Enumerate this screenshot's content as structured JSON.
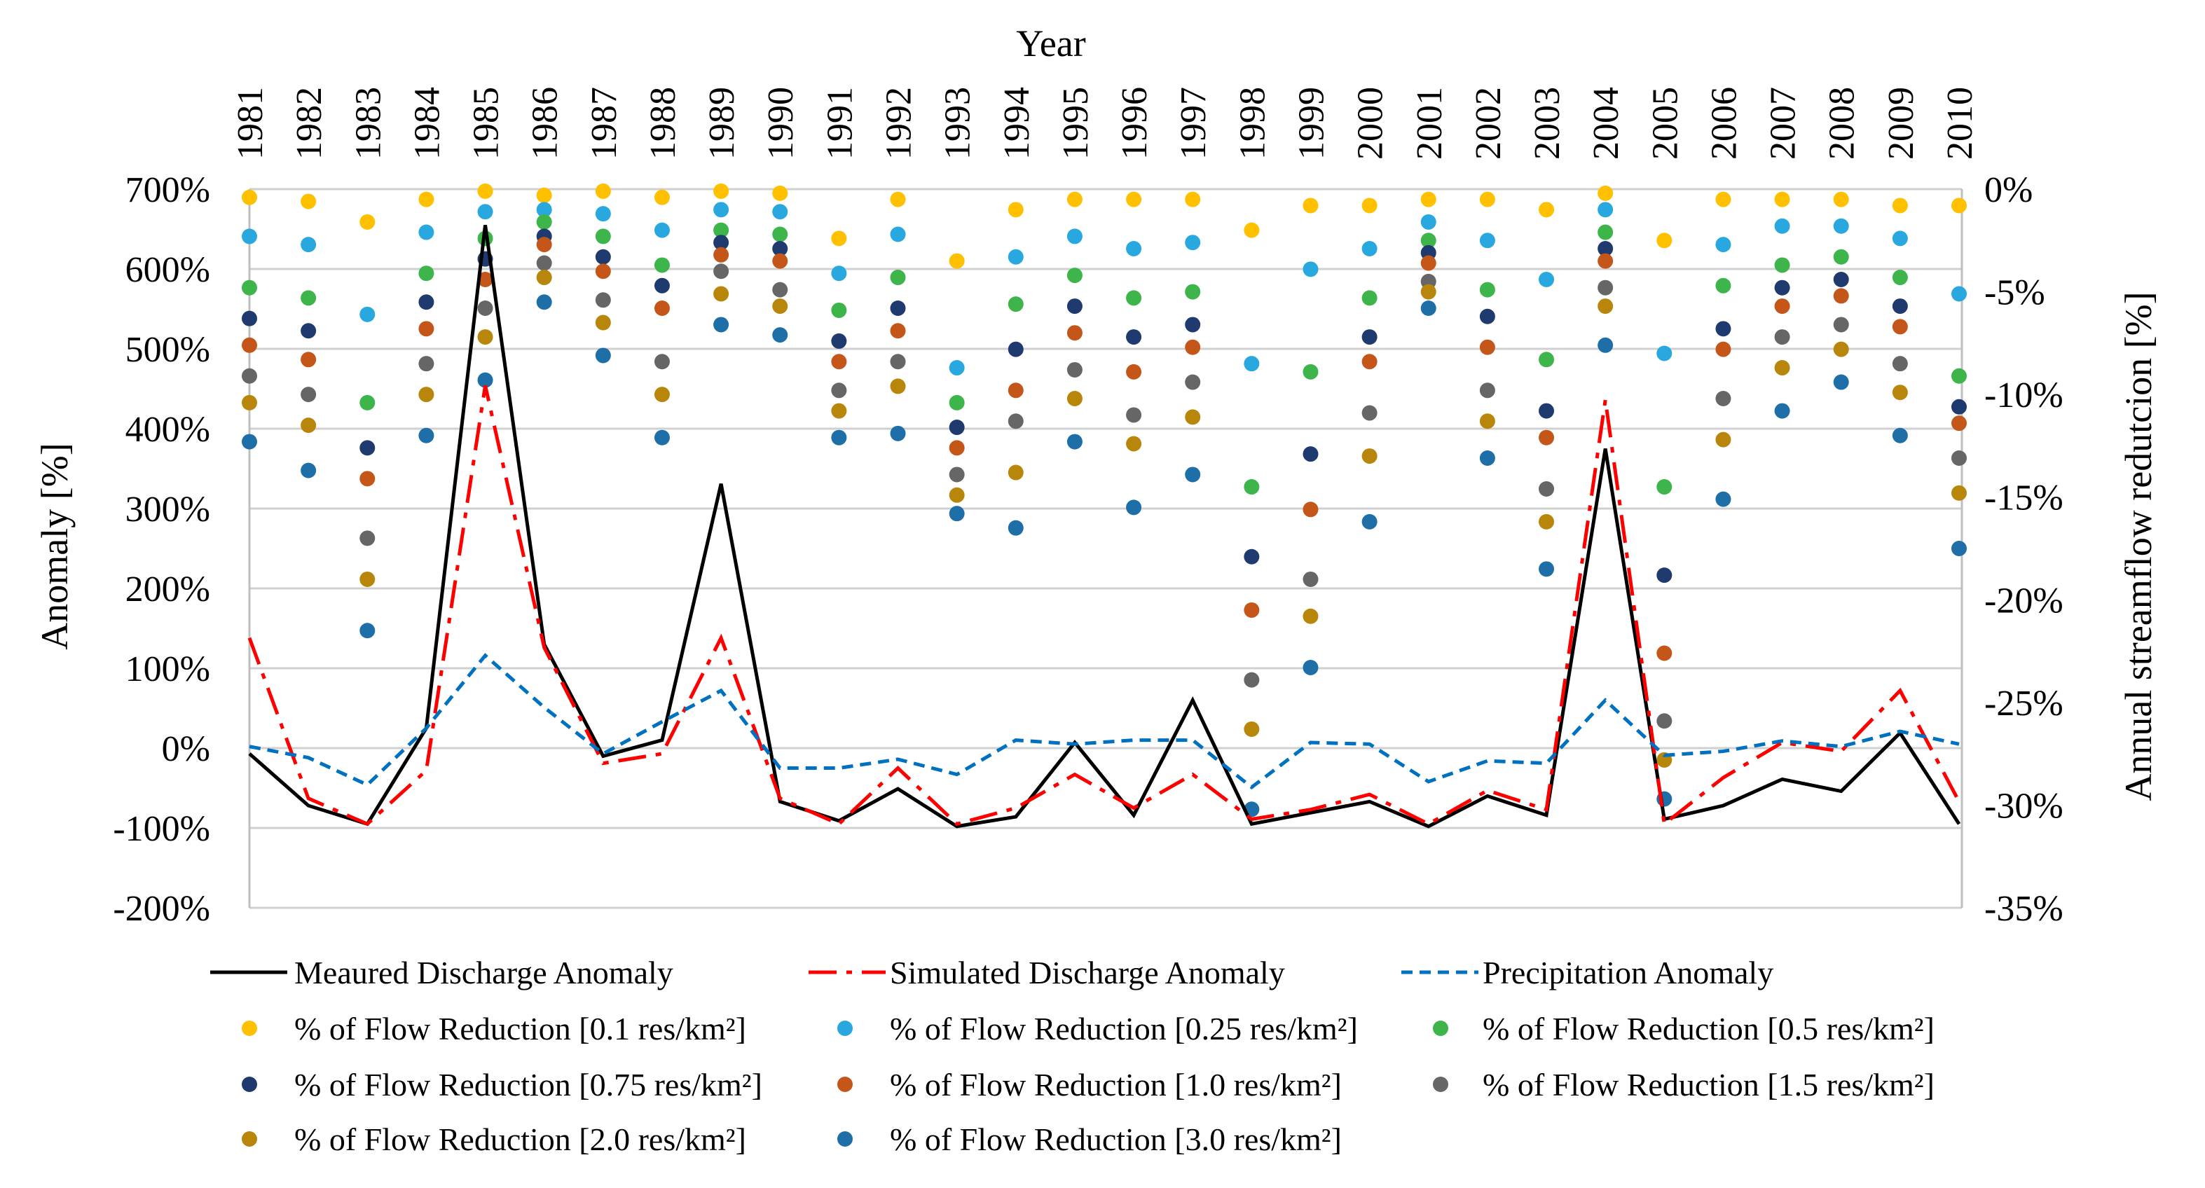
{
  "chart_data": {
    "type": "line",
    "title": "",
    "xlabel": "Year",
    "ylabel": "Anomaly [%]",
    "ylabel_right": "Annual streamflow redutcion [%]",
    "x": [
      1981,
      1982,
      1983,
      1984,
      1985,
      1986,
      1987,
      1988,
      1989,
      1990,
      1991,
      1992,
      1993,
      1994,
      1995,
      1996,
      1997,
      1998,
      1999,
      2000,
      2001,
      2002,
      2003,
      2004,
      2005,
      2006,
      2007,
      2008,
      2009,
      2010
    ],
    "ylim": [
      -200,
      700
    ],
    "ylim_right": [
      -35,
      0
    ],
    "yticks": [
      "700%",
      "600%",
      "500%",
      "400%",
      "300%",
      "200%",
      "100%",
      "0%",
      "-100%",
      "-200%"
    ],
    "yticks_right": [
      "0%",
      "-5%",
      "-10%",
      "-15%",
      "-20%",
      "-25%",
      "-30%",
      "-35%"
    ],
    "grid": true,
    "legend_position": "bottom",
    "line_series": [
      {
        "name": "Meaured Discharge Anomaly",
        "color": "#000000",
        "dash": "solid",
        "values": [
          -7,
          -72,
          -95,
          25,
          655,
          130,
          -10,
          10,
          331,
          -67,
          -91,
          -51,
          -98,
          -86,
          7,
          -84,
          60,
          -95,
          -81,
          -67,
          -98,
          -60,
          -84,
          375,
          -89,
          -72,
          -39,
          -54,
          19,
          -95
        ]
      },
      {
        "name": "Simulated Discharge Anomaly",
        "color": "#FF0000",
        "dash": "dashdot",
        "values": [
          138,
          -63,
          -95,
          -28,
          454,
          126,
          -19,
          -7,
          138,
          -63,
          -95,
          -25,
          -95,
          -75,
          -33,
          -75,
          -33,
          -89,
          -77,
          -58,
          -95,
          -53,
          -77,
          436,
          -95,
          -37,
          7,
          -4,
          72,
          -67
        ]
      },
      {
        "name": "Precipitation Anomaly",
        "color": "#0070C0",
        "dash": "dash",
        "values": [
          2,
          -12,
          -46,
          25,
          116,
          51,
          -7,
          33,
          72,
          -25,
          -25,
          -14,
          -33,
          10,
          5,
          10,
          10,
          -49,
          7,
          5,
          -42,
          -16,
          -19,
          60,
          -9,
          -4,
          9,
          2,
          21,
          5
        ]
      }
    ],
    "dot_series": [
      {
        "name": "% of Flow Reduction [0.1 res/km²]",
        "color": "#FFC000",
        "values": [
          -0.4,
          -0.6,
          -1.6,
          -0.5,
          -0.1,
          -0.3,
          -0.1,
          -0.4,
          -0.1,
          -0.2,
          -2.4,
          -0.5,
          -3.5,
          -1.0,
          -0.5,
          -0.5,
          -0.5,
          -2.0,
          -0.8,
          -0.8,
          -0.5,
          -0.5,
          -1.0,
          -0.2,
          -2.5,
          -0.5,
          -0.5,
          -0.5,
          -0.8,
          -0.8
        ]
      },
      {
        "name": "% of Flow Reduction [0.25 res/km²]",
        "color": "#29A8E0",
        "values": [
          -2.3,
          -2.7,
          -6.1,
          -2.1,
          -1.1,
          -1.0,
          -1.2,
          -2.0,
          -1.0,
          -1.1,
          -4.1,
          -2.2,
          -8.7,
          -3.3,
          -2.3,
          -2.9,
          -2.6,
          -8.5,
          -3.9,
          -2.9,
          -1.6,
          -2.5,
          -4.4,
          -1.0,
          -8.0,
          -2.7,
          -1.8,
          -1.8,
          -2.4,
          -5.1
        ]
      },
      {
        "name": "% of Flow Reduction [0.5 res/km²]",
        "color": "#3DB54A",
        "values": [
          -4.8,
          -5.3,
          -10.4,
          -4.1,
          -2.4,
          -1.6,
          -2.3,
          -3.7,
          -2.0,
          -2.2,
          -5.9,
          -4.3,
          -10.4,
          -5.6,
          -4.2,
          -5.3,
          -5.0,
          -14.5,
          -8.9,
          -5.3,
          -2.5,
          -4.9,
          -8.3,
          -2.1,
          -14.5,
          -4.7,
          -3.7,
          -3.3,
          -4.3,
          -9.1
        ]
      },
      {
        "name": "% of Flow Reduction [0.75 res/km²]",
        "color": "#1F3A6E",
        "values": [
          -6.3,
          -6.9,
          -12.6,
          -5.5,
          -3.4,
          -2.3,
          -3.3,
          -4.7,
          -2.6,
          -2.9,
          -7.4,
          -5.8,
          -11.6,
          -7.8,
          -5.7,
          -7.2,
          -6.6,
          -17.9,
          -12.9,
          -7.2,
          -3.1,
          -6.2,
          -10.8,
          -2.9,
          -18.8,
          -6.8,
          -4.8,
          -4.4,
          -5.7,
          -10.6
        ]
      },
      {
        "name": "% of Flow Reduction [1.0 res/km²]",
        "color": "#C5561A",
        "values": [
          -7.6,
          -8.3,
          -14.1,
          -6.8,
          -4.4,
          -2.7,
          -4.0,
          -5.8,
          -3.2,
          -3.5,
          -8.4,
          -6.9,
          -12.6,
          -9.8,
          -7.0,
          -8.9,
          -7.7,
          -20.5,
          -15.6,
          -8.4,
          -3.6,
          -7.7,
          -12.1,
          -3.5,
          -22.6,
          -7.8,
          -5.7,
          -5.2,
          -6.7,
          -11.4
        ]
      },
      {
        "name": "% of Flow Reduction [1.5 res/km²]",
        "color": "#666666",
        "values": [
          -9.1,
          -10.0,
          -17.0,
          -8.5,
          -5.8,
          -3.6,
          -5.4,
          -8.4,
          -4.0,
          -4.9,
          -9.8,
          -8.4,
          -13.9,
          -11.3,
          -8.8,
          -11.0,
          -9.4,
          -23.9,
          -19.0,
          -10.9,
          -4.5,
          -9.8,
          -14.6,
          -4.8,
          -25.9,
          -10.2,
          -7.2,
          -6.6,
          -8.5,
          -13.1
        ]
      },
      {
        "name": "% of Flow Reduction [2.0 res/km²]",
        "color": "#B8860B",
        "values": [
          -10.4,
          -11.5,
          -19.0,
          -10.0,
          -7.2,
          -4.3,
          -6.5,
          -10.0,
          -5.1,
          -5.7,
          -10.8,
          -9.6,
          -14.9,
          -13.8,
          -10.2,
          -12.4,
          -11.1,
          -26.3,
          -20.8,
          -13.0,
          -5.0,
          -11.3,
          -16.2,
          -5.7,
          -27.8,
          -12.2,
          -8.7,
          -7.8,
          -9.9,
          -14.8
        ]
      },
      {
        "name": "% of Flow Reduction [3.0 res/km²]",
        "color": "#1E6FA8",
        "values": [
          -12.3,
          -13.7,
          -21.5,
          -12.0,
          -9.3,
          -5.5,
          -8.1,
          -12.1,
          -6.6,
          -7.1,
          -12.1,
          -11.9,
          -15.8,
          -16.5,
          -12.3,
          -15.5,
          -13.9,
          -30.2,
          -23.3,
          -16.2,
          -5.8,
          -13.1,
          -18.5,
          -7.6,
          -29.7,
          -15.1,
          -10.8,
          -9.4,
          -12.0,
          -17.5
        ]
      }
    ]
  }
}
